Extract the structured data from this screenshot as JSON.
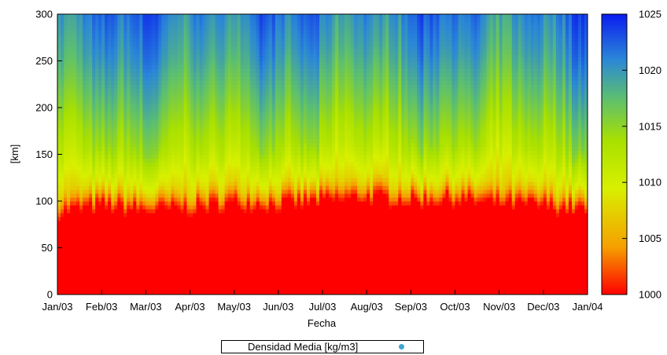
{
  "chart_data": {
    "type": "heatmap",
    "title": "",
    "xlabel": "Fecha",
    "ylabel": "[km]",
    "x_tick_labels": [
      "Jan/03",
      "Feb/03",
      "Mar/03",
      "Apr/03",
      "May/03",
      "Jun/03",
      "Jul/03",
      "Aug/03",
      "Sep/03",
      "Oct/03",
      "Nov/03",
      "Dec/03",
      "Jan/04"
    ],
    "y_ticks": [
      0,
      50,
      100,
      150,
      200,
      250,
      300
    ],
    "ylim": [
      0,
      300
    ],
    "colorbar": {
      "ticks": [
        1000,
        1005,
        1010,
        1015,
        1020,
        1025
      ],
      "range": [
        1000,
        1025
      ],
      "colors": [
        "#ff0000",
        "#f5a000",
        "#d8f000",
        "#a8e000",
        "#5cbf70",
        "#2a86d8",
        "#0a1cf0"
      ]
    },
    "legend": {
      "label": "Densidad Media [kg/m3]",
      "marker_color": "#3ca7d2",
      "position": "bottom-center"
    },
    "grid": false,
    "series": [
      {
        "x_interval": "2003 monthly, Jan/03 to Jan/04",
        "profile_depths_km": [
          0,
          50,
          90,
          110,
          150,
          200,
          250,
          300
        ],
        "profile_values": [
          1000.0,
          1000.0,
          1000.5,
          1008.0,
          1013.0,
          1016.5,
          1019.5,
          1021.5
        ],
        "pycnocline_depth_km": [
          88,
          95,
          90,
          92,
          98,
          96,
          100,
          104,
          100,
          102,
          97,
          95,
          90
        ]
      }
    ]
  }
}
